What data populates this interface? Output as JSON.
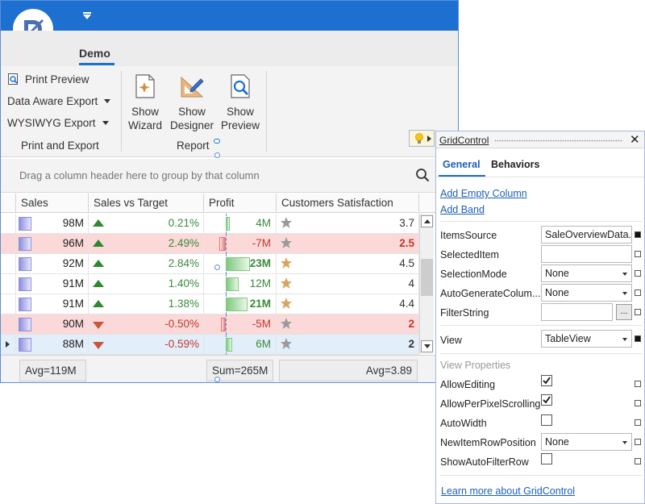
{
  "ribbon": {
    "tab_label": "Demo",
    "items": {
      "print_preview": "Print Preview",
      "data_aware_export": "Data Aware Export",
      "wysiwyg_export": "WYSIWYG Export"
    },
    "group_print_export": "Print and Export",
    "group_report": "Report",
    "show_wizard_l1": "Show",
    "show_wizard_l2": "Wizard",
    "show_designer_l1": "Show",
    "show_designer_l2": "Designer",
    "show_preview_l1": "Show",
    "show_preview_l2": "Preview"
  },
  "grid": {
    "group_hint": "Drag a column header here to group by that column",
    "columns": [
      "Sales",
      "Sales vs Target",
      "Profit",
      "Customers Satisfaction"
    ],
    "rows": [
      {
        "sales": "98M",
        "svt": "0.21%",
        "svt_dir": "up",
        "profit": "4M",
        "profit_value": 4,
        "cs": "3.7",
        "state": "normal",
        "star": "gray"
      },
      {
        "sales": "96M",
        "svt": "2.49%",
        "svt_dir": "up",
        "profit": "-7M",
        "profit_value": -7,
        "cs": "2.5",
        "state": "neg",
        "star": "gray"
      },
      {
        "sales": "92M",
        "svt": "2.84%",
        "svt_dir": "up",
        "profit": "23M",
        "profit_value": 23,
        "cs": "4.5",
        "state": "normal",
        "star": "gold"
      },
      {
        "sales": "91M",
        "svt": "1.40%",
        "svt_dir": "up",
        "profit": "12M",
        "profit_value": 12,
        "cs": "4",
        "state": "normal",
        "star": "gold"
      },
      {
        "sales": "91M",
        "svt": "1.38%",
        "svt_dir": "up",
        "profit": "21M",
        "profit_value": 21,
        "cs": "4.4",
        "state": "normal",
        "star": "gold"
      },
      {
        "sales": "90M",
        "svt": "-0.50%",
        "svt_dir": "down",
        "profit": "-5M",
        "profit_value": -5,
        "cs": "2",
        "state": "neg",
        "star": "gray"
      },
      {
        "sales": "88M",
        "svt": "-0.59%",
        "svt_dir": "down",
        "profit": "6M",
        "profit_value": 6,
        "cs": "2",
        "state": "focused",
        "star": "gray"
      }
    ],
    "summary_sales": "Avg=119M",
    "summary_profit": "Sum=265M",
    "summary_cs": "Avg=3.89"
  },
  "panel": {
    "title": "GridControl",
    "close": "✕",
    "tab_general": "General",
    "tab_behaviors": "Behaviors",
    "link_add_empty_column": "Add Empty Column",
    "link_add_band": "Add Band",
    "props": {
      "items_source_label": "ItemsSource",
      "items_source_value": "SaleOverviewData...",
      "selected_item_label": "SelectedItem",
      "selected_item_value": "",
      "selection_mode_label": "SelectionMode",
      "selection_mode_value": "None",
      "auto_generate_label": "AutoGenerateColum...",
      "auto_generate_value": "None",
      "filter_string_label": "FilterString",
      "filter_string_value": "",
      "filter_button": "...",
      "view_label": "View",
      "view_value": "TableView"
    },
    "view_properties_header": "View Properties",
    "view_props": {
      "allow_editing_label": "AllowEditing",
      "allow_editing": true,
      "allow_per_pixel_label": "AllowPerPixelScrolling",
      "allow_per_pixel": true,
      "auto_width_label": "AutoWidth",
      "auto_width": false,
      "new_item_row_label": "NewItemRowPosition",
      "new_item_row_value": "None",
      "show_auto_filter_label": "ShowAutoFilterRow",
      "show_auto_filter": false
    },
    "learn_more": "Learn more about GridControl"
  },
  "colors": {
    "accent": "#1d6fd0",
    "positive": "#3a8a3a",
    "negative": "#c0392b",
    "neg_row": "#fbd9d9",
    "focused_row": "#e3eefb",
    "star_gold": "#d9a460",
    "star_gray": "#9a9a9a"
  }
}
